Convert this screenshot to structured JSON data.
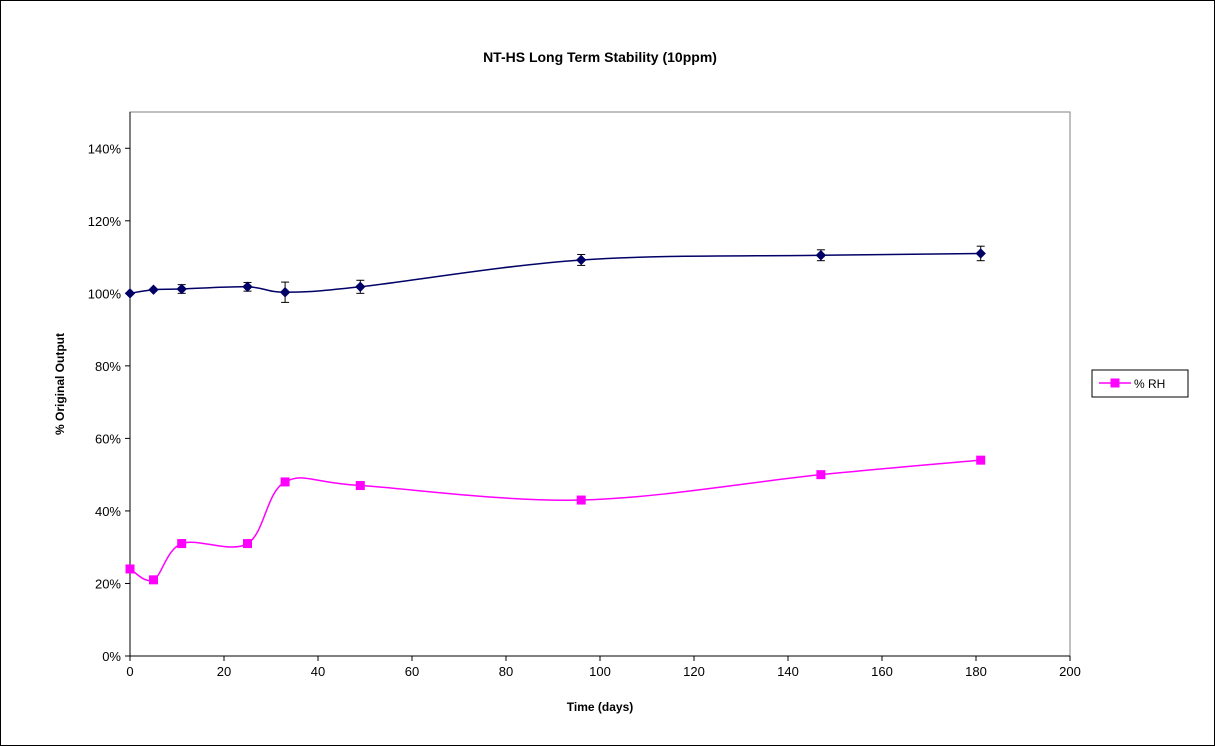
{
  "chart_data": {
    "type": "line",
    "title": "NT-HS Long Term Stability (10ppm)",
    "xlabel": "Time (days)",
    "ylabel": "% Original Output",
    "xlim": [
      0,
      200
    ],
    "ylim": [
      0,
      150
    ],
    "x_ticks": [
      "0",
      "20",
      "40",
      "60",
      "80",
      "100",
      "120",
      "140",
      "160",
      "180",
      "200"
    ],
    "y_ticks": [
      "0%",
      "20%",
      "40%",
      "60%",
      "80%",
      "100%",
      "120%",
      "140%"
    ],
    "grid": false,
    "legend": {
      "placement": "right",
      "entries": [
        "% RH"
      ]
    },
    "smooth_lines": true,
    "series": [
      {
        "color": "#000066",
        "marker": "diamond",
        "x": [
          0,
          5,
          11,
          25,
          33,
          49,
          96,
          147,
          181
        ],
        "y": [
          100,
          101,
          101.2,
          101.8,
          100.3,
          101.8,
          109.2,
          110.5,
          111
        ],
        "error": [
          0,
          0,
          1.2,
          1.2,
          2.8,
          1.8,
          1.5,
          1.5,
          2
        ]
      },
      {
        "name": "% RH",
        "color": "#ff00ff",
        "marker": "square",
        "x": [
          0,
          5,
          11,
          25,
          33,
          49,
          96,
          147,
          181
        ],
        "y": [
          24,
          21,
          31,
          31,
          48,
          47,
          43,
          50,
          54
        ]
      }
    ]
  }
}
